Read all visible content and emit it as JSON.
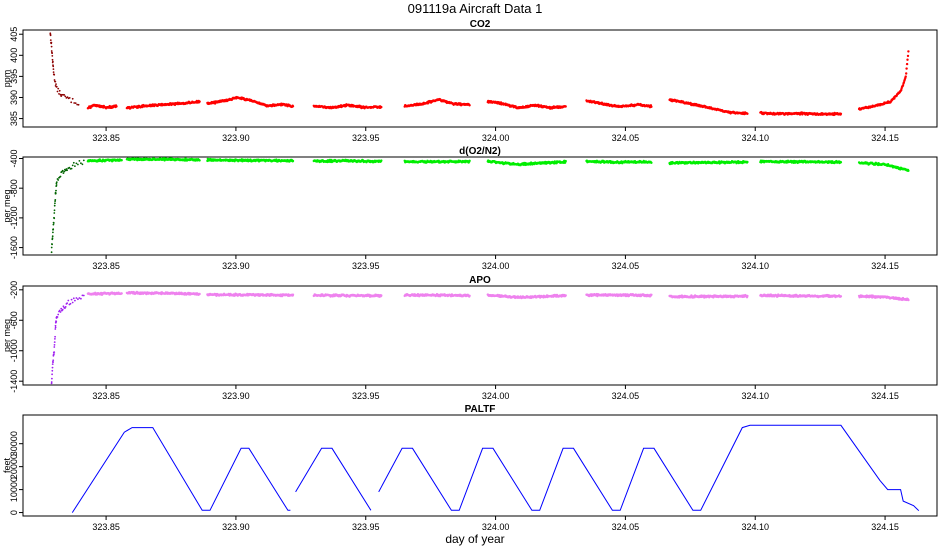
{
  "figure": {
    "title": "091119a   Aircraft Data 1",
    "xlabel": "day of year"
  },
  "chart_data": [
    {
      "type": "scatter",
      "title": "CO2",
      "ylabel": "ppm",
      "xlim": [
        323.818,
        324.17
      ],
      "ylim": [
        383,
        406
      ],
      "yticks": [
        385,
        390,
        395,
        400,
        405
      ],
      "xticks": [
        323.85,
        323.9,
        323.95,
        324.0,
        324.05,
        324.1,
        324.15
      ],
      "xtick_labels": [
        "323.85",
        "323.90",
        "323.95",
        "324.00",
        "324.05",
        "324.10",
        "324.15"
      ],
      "colors": {
        "main": "#ff0000",
        "dark": "#8b0000"
      },
      "spike": [
        [
          323.8285,
          405.5
        ],
        [
          323.829,
          402
        ],
        [
          323.8295,
          398
        ],
        [
          323.83,
          395
        ],
        [
          323.831,
          392
        ],
        [
          323.833,
          390.5
        ],
        [
          323.836,
          389.5
        ],
        [
          323.84,
          388.5
        ]
      ],
      "series": [
        {
          "x": [
            323.843,
            323.846,
            323.85,
            323.854
          ],
          "y": [
            387.5,
            388.2,
            387.6,
            387.9
          ]
        },
        {
          "x": [
            323.858,
            323.865,
            323.872,
            323.879,
            323.886
          ],
          "y": [
            387.5,
            388.0,
            388.3,
            388.6,
            389.0
          ]
        },
        {
          "x": [
            323.889,
            323.895,
            323.901,
            323.907,
            323.912,
            323.918,
            323.922
          ],
          "y": [
            388.5,
            389.2,
            390.0,
            389.0,
            388.0,
            388.4,
            387.8
          ]
        },
        {
          "x": [
            323.93,
            323.936,
            323.943,
            323.95,
            323.956
          ],
          "y": [
            388.0,
            387.5,
            388.2,
            387.6,
            387.8
          ]
        },
        {
          "x": [
            323.965,
            323.972,
            323.978,
            323.984,
            323.99
          ],
          "y": [
            388.0,
            388.5,
            389.5,
            388.5,
            388.2
          ]
        },
        {
          "x": [
            323.997,
            324.003,
            324.009,
            324.015,
            324.021,
            324.027
          ],
          "y": [
            389.0,
            388.5,
            387.5,
            388.2,
            387.6,
            387.8
          ]
        },
        {
          "x": [
            324.035,
            324.041,
            324.048,
            324.055,
            324.06
          ],
          "y": [
            389.2,
            388.5,
            387.8,
            388.3,
            387.9
          ]
        },
        {
          "x": [
            324.067,
            324.075,
            324.083,
            324.09,
            324.097
          ],
          "y": [
            389.5,
            388.5,
            387.5,
            386.5,
            386.2
          ]
        },
        {
          "x": [
            324.102,
            324.11,
            324.118,
            324.126,
            324.133
          ],
          "y": [
            386.3,
            386.1,
            386.2,
            386.0,
            386.2
          ]
        },
        {
          "x": [
            324.14,
            324.146,
            324.152,
            324.156,
            324.158,
            324.159
          ],
          "y": [
            387.2,
            388.0,
            389.0,
            391.5,
            395.0,
            401.0
          ]
        }
      ]
    },
    {
      "type": "scatter",
      "title": "d(O2/N2)",
      "ylabel": "per meg",
      "xlim": [
        323.818,
        324.17
      ],
      "ylim": [
        -1700,
        -380
      ],
      "yticks": [
        -400,
        -800,
        -1200,
        -1600
      ],
      "xticks": [
        323.85,
        323.9,
        323.95,
        324.0,
        324.05,
        324.1,
        324.15
      ],
      "xtick_labels": [
        "323.85",
        "323.90",
        "323.95",
        "324.00",
        "324.05",
        "324.10",
        "324.15"
      ],
      "colors": {
        "main": "#00ee00",
        "dark": "#006400"
      },
      "spike": [
        [
          323.829,
          -1650
        ],
        [
          323.8295,
          -1400
        ],
        [
          323.83,
          -1180
        ],
        [
          323.8305,
          -900
        ],
        [
          323.831,
          -700
        ],
        [
          323.833,
          -600
        ],
        [
          323.835,
          -540
        ],
        [
          323.838,
          -480
        ],
        [
          323.842,
          -440
        ]
      ],
      "series": [
        {
          "x": [
            323.843,
            323.85,
            323.856
          ],
          "y": [
            -430,
            -425,
            -420
          ]
        },
        {
          "x": [
            323.858,
            323.872,
            323.886
          ],
          "y": [
            -410,
            -412,
            -418
          ]
        },
        {
          "x": [
            323.889,
            323.905,
            323.922
          ],
          "y": [
            -420,
            -425,
            -430
          ]
        },
        {
          "x": [
            323.93,
            323.943,
            323.956
          ],
          "y": [
            -435,
            -430,
            -440
          ]
        },
        {
          "x": [
            323.965,
            323.978,
            323.99
          ],
          "y": [
            -440,
            -445,
            -440
          ]
        },
        {
          "x": [
            323.997,
            324.009,
            324.027
          ],
          "y": [
            -440,
            -480,
            -445
          ]
        },
        {
          "x": [
            324.035,
            324.048,
            324.06
          ],
          "y": [
            -440,
            -450,
            -445
          ]
        },
        {
          "x": [
            324.067,
            324.082,
            324.097
          ],
          "y": [
            -460,
            -455,
            -450
          ]
        },
        {
          "x": [
            324.102,
            324.118,
            324.133
          ],
          "y": [
            -440,
            -445,
            -450
          ]
        },
        {
          "x": [
            324.14,
            324.15,
            324.159
          ],
          "y": [
            -460,
            -480,
            -560
          ]
        }
      ]
    },
    {
      "type": "scatter",
      "title": "APO",
      "ylabel": "per meg",
      "xlim": [
        323.818,
        324.17
      ],
      "ylim": [
        -1450,
        -150
      ],
      "yticks": [
        -200,
        -600,
        -1000,
        -1400
      ],
      "xticks": [
        323.85,
        323.9,
        323.95,
        324.0,
        324.05,
        324.1,
        324.15
      ],
      "xtick_labels": [
        "323.85",
        "323.90",
        "323.95",
        "324.00",
        "324.05",
        "324.10",
        "324.15"
      ],
      "colors": {
        "main": "#ee82ee",
        "dark": "#a020f0"
      },
      "spike": [
        [
          323.829,
          -1420
        ],
        [
          323.8295,
          -1150
        ],
        [
          323.83,
          -1000
        ],
        [
          323.8305,
          -700
        ],
        [
          323.831,
          -550
        ],
        [
          323.833,
          -450
        ],
        [
          323.835,
          -380
        ],
        [
          323.838,
          -320
        ],
        [
          323.842,
          -280
        ]
      ],
      "series": [
        {
          "x": [
            323.843,
            323.85,
            323.856
          ],
          "y": [
            -255,
            -250,
            -248
          ]
        },
        {
          "x": [
            323.858,
            323.872,
            323.886
          ],
          "y": [
            -240,
            -245,
            -255
          ]
        },
        {
          "x": [
            323.889,
            323.905,
            323.922
          ],
          "y": [
            -262,
            -268,
            -270
          ]
        },
        {
          "x": [
            323.93,
            323.943,
            323.956
          ],
          "y": [
            -272,
            -275,
            -278
          ]
        },
        {
          "x": [
            323.965,
            323.978,
            323.99
          ],
          "y": [
            -270,
            -272,
            -275
          ]
        },
        {
          "x": [
            323.997,
            324.009,
            324.027
          ],
          "y": [
            -270,
            -300,
            -275
          ]
        },
        {
          "x": [
            324.035,
            324.048,
            324.06
          ],
          "y": [
            -268,
            -270,
            -272
          ]
        },
        {
          "x": [
            324.067,
            324.082,
            324.097
          ],
          "y": [
            -290,
            -288,
            -285
          ]
        },
        {
          "x": [
            324.102,
            324.118,
            324.133
          ],
          "y": [
            -275,
            -280,
            -285
          ]
        },
        {
          "x": [
            324.14,
            324.15,
            324.159
          ],
          "y": [
            -285,
            -295,
            -330
          ]
        }
      ]
    },
    {
      "type": "line",
      "title": "PALTF",
      "ylabel": "feet",
      "xlim": [
        323.818,
        324.17
      ],
      "ylim": [
        -1500,
        42500
      ],
      "yticks": [
        0,
        10000,
        20000,
        30000
      ],
      "xticks": [
        323.85,
        323.9,
        323.95,
        324.0,
        324.05,
        324.1,
        324.15
      ],
      "xtick_labels": [
        "323.85",
        "323.90",
        "323.95",
        "324.00",
        "324.05",
        "324.10",
        "324.15"
      ],
      "colors": {
        "main": "#0000ff"
      },
      "segments": [
        [
          [
            323.837,
            0
          ],
          [
            323.857,
            35000
          ],
          [
            323.86,
            37000
          ],
          [
            323.868,
            37000
          ],
          [
            323.887,
            1000
          ],
          [
            323.89,
            1000
          ],
          [
            323.902,
            28000
          ],
          [
            323.905,
            28000
          ],
          [
            323.92,
            1000
          ],
          [
            323.921,
            1000
          ]
        ],
        [
          [
            323.923,
            9000
          ],
          [
            323.933,
            28000
          ],
          [
            323.937,
            28000
          ],
          [
            323.952,
            1000
          ]
        ],
        [
          [
            323.955,
            9000
          ],
          [
            323.964,
            28000
          ],
          [
            323.968,
            28000
          ],
          [
            323.983,
            1000
          ],
          [
            323.986,
            1000
          ],
          [
            323.995,
            28000
          ],
          [
            323.999,
            28000
          ],
          [
            324.014,
            1000
          ],
          [
            324.017,
            1000
          ],
          [
            324.026,
            28000
          ],
          [
            324.03,
            28000
          ],
          [
            324.045,
            1000
          ],
          [
            324.048,
            1000
          ],
          [
            324.057,
            28000
          ],
          [
            324.061,
            28000
          ],
          [
            324.076,
            1000
          ],
          [
            324.079,
            1000
          ],
          [
            324.095,
            37000
          ],
          [
            324.098,
            38000
          ],
          [
            324.133,
            38000
          ],
          [
            324.148,
            14000
          ],
          [
            324.151,
            10000
          ],
          [
            324.156,
            10000
          ],
          [
            324.157,
            5000
          ],
          [
            324.161,
            3000
          ],
          [
            324.163,
            800
          ]
        ]
      ]
    }
  ]
}
